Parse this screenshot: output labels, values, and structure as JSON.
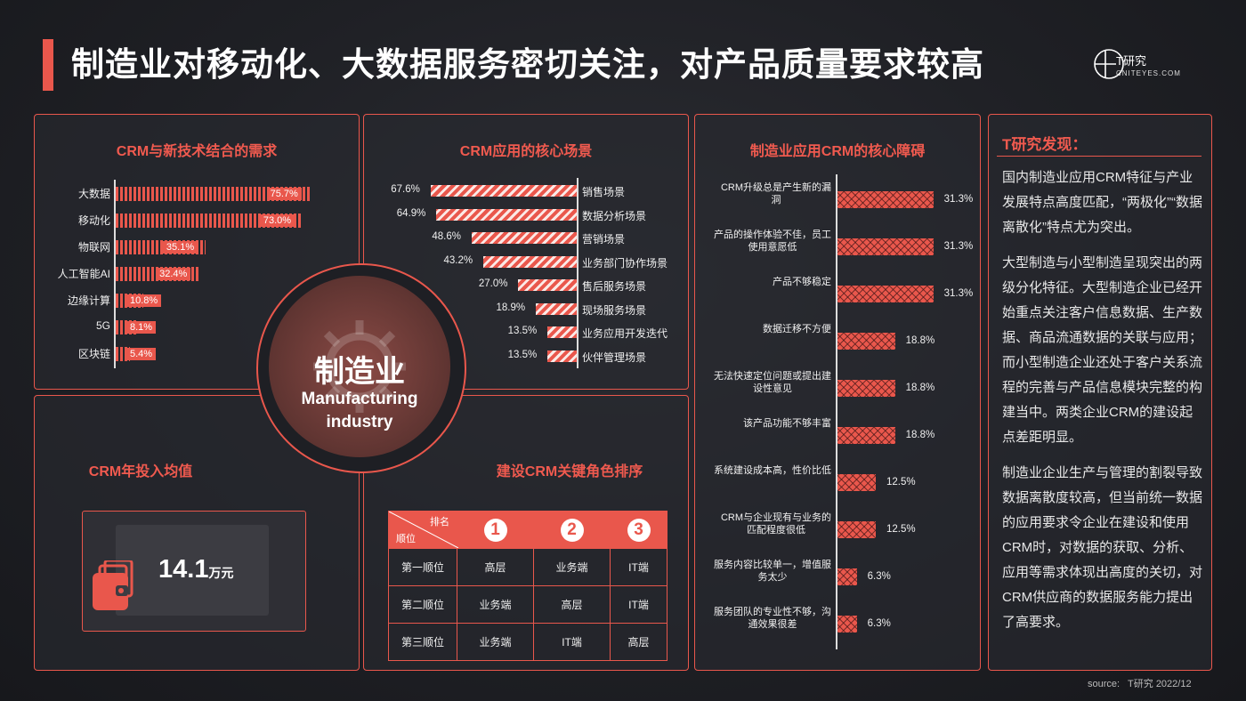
{
  "title": "制造业对移动化、大数据服务密切关注，对产品质量要求较高",
  "logo": {
    "name": "T研究",
    "sub": "CNITEYES.COM"
  },
  "center": {
    "cn": "制造业",
    "en1": "Manufacturing",
    "en2": "industry"
  },
  "chart_data": [
    {
      "type": "bar",
      "title": "CRM与新技术结合的需求",
      "categories": [
        "大数据",
        "移动化",
        "物联网",
        "人工智能AI",
        "边缘计算",
        "5G",
        "区块链"
      ],
      "values": [
        75.7,
        73.0,
        35.1,
        32.4,
        10.8,
        8.1,
        5.4
      ],
      "labels": [
        "75.7%",
        "73.0%",
        "35.1%",
        "32.4%",
        "10.8%",
        "8.1%",
        "5.4%"
      ]
    },
    {
      "type": "bar",
      "title": "CRM应用的核心场景",
      "categories": [
        "销售场景",
        "数据分析场景",
        "营销场景",
        "业务部门协作场景",
        "售后服务场景",
        "现场服务场景",
        "业务应用开发迭代",
        "伙伴管理场景"
      ],
      "values": [
        67.6,
        64.9,
        48.6,
        43.2,
        27.0,
        18.9,
        13.5,
        13.5
      ],
      "labels": [
        "67.6%",
        "64.9%",
        "48.6%",
        "43.2%",
        "27.0%",
        "18.9%",
        "13.5%",
        "13.5%"
      ]
    },
    {
      "type": "bar",
      "title": "制造业应用CRM的核心障碍",
      "categories": [
        [
          "CRM升级总是产生新的漏",
          "洞"
        ],
        [
          "产品的操作体验不佳，员工",
          "使用意愿低"
        ],
        [
          "产品不够稳定"
        ],
        [
          "数据迁移不方便"
        ],
        [
          "无法快速定位问题或提出建",
          "设性意见"
        ],
        [
          "该产品功能不够丰富"
        ],
        [
          "系统建设成本高，性价比低"
        ],
        [
          "CRM与企业现有与业务的",
          "匹配程度很低"
        ],
        [
          "服务内容比较单一，增值服",
          "务太少"
        ],
        [
          "服务团队的专业性不够，沟",
          "通效果很差"
        ]
      ],
      "values": [
        31.3,
        31.3,
        31.3,
        18.8,
        18.8,
        18.8,
        12.5,
        12.5,
        6.3,
        6.3
      ],
      "labels": [
        "31.3%",
        "31.3%",
        "31.3%",
        "18.8%",
        "18.8%",
        "18.8%",
        "12.5%",
        "12.5%",
        "6.3%",
        "6.3%"
      ]
    }
  ],
  "invest": {
    "title": "CRM年投入均值",
    "value": "14.1",
    "unit": "万元"
  },
  "roles": {
    "title": "建设CRM关键角色排序",
    "corner_top": "排名",
    "corner_bottom": "顺位",
    "ranks": [
      "1",
      "2",
      "3"
    ],
    "rows": [
      {
        "name": "第一顺位",
        "cells": [
          "高层",
          "业务端",
          "IT端"
        ]
      },
      {
        "name": "第二顺位",
        "cells": [
          "业务端",
          "高层",
          "IT端"
        ]
      },
      {
        "name": "第三顺位",
        "cells": [
          "业务端",
          "IT端",
          "高层"
        ]
      }
    ]
  },
  "findings": {
    "title": "T研究发现：",
    "paras": [
      "国内制造业应用CRM特征与产业发展特点高度匹配，“两极化”“数据离散化”特点尤为突出。",
      "大型制造与小型制造呈现突出的两级分化特征。大型制造企业已经开始重点关注客户信息数据、生产数据、商品流通数据的关联与应用；而小型制造企业还处于客户关系流程的完善与产品信息模块完整的构建当中。两类企业CRM的建设起点差距明显。",
      "制造业企业生产与管理的割裂导致数据离散度较高，但当前统一数据的应用要求令企业在建设和使用CRM时，对数据的获取、分析、应用等需求体现出高度的关切，对CRM供应商的数据服务能力提出了高要求。"
    ]
  },
  "source": "source:   T研究 2022/12",
  "colors": {
    "accent": "#e9574c",
    "background": "#1f2025"
  }
}
